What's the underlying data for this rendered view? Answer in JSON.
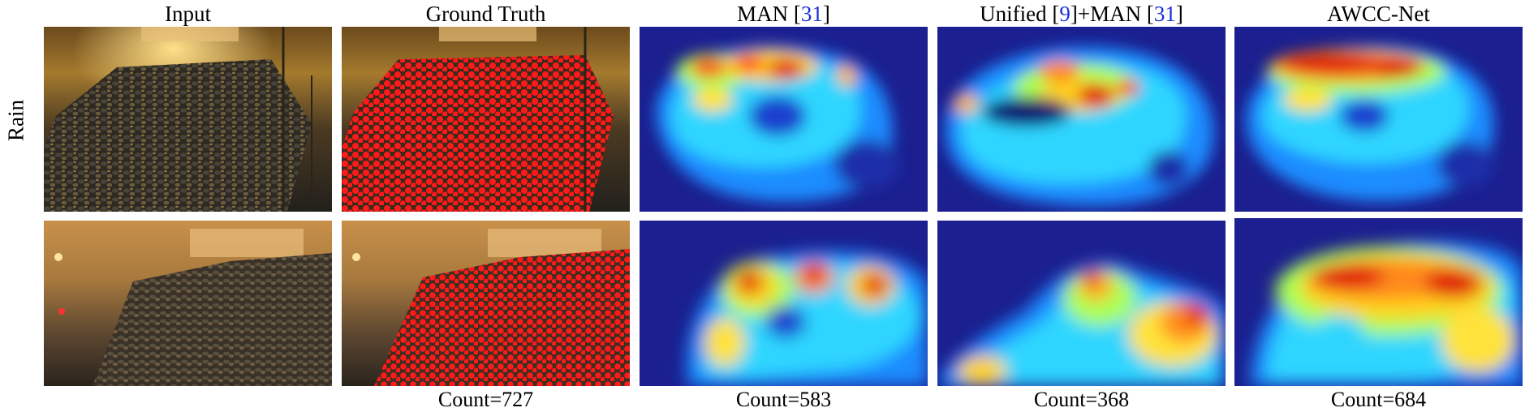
{
  "figure": {
    "columns": [
      {
        "title": "Input",
        "ref": null,
        "suffix": "",
        "ref2": null,
        "suffix2": ""
      },
      {
        "title": "Ground Truth",
        "ref": null,
        "suffix": "",
        "ref2": null,
        "suffix2": ""
      },
      {
        "title": "MAN [",
        "ref": "31",
        "suffix": "]",
        "ref2": null,
        "suffix2": ""
      },
      {
        "title": "Unified [",
        "ref": "9",
        "suffix": "]+MAN [",
        "ref2": "31",
        "suffix2": "]"
      },
      {
        "title": "AWCC-Net",
        "ref": null,
        "suffix": "",
        "ref2": null,
        "suffix2": ""
      }
    ],
    "row_label": "Rain",
    "counts": [
      "",
      "Count=727",
      "Count=583",
      "Count=368",
      "Count=684"
    ],
    "colors": {
      "cite": "#1a2fd6",
      "gt_dot": "#ff1a1a",
      "heat_low": "#1b1f8f",
      "heat_high": "#e01010"
    }
  }
}
